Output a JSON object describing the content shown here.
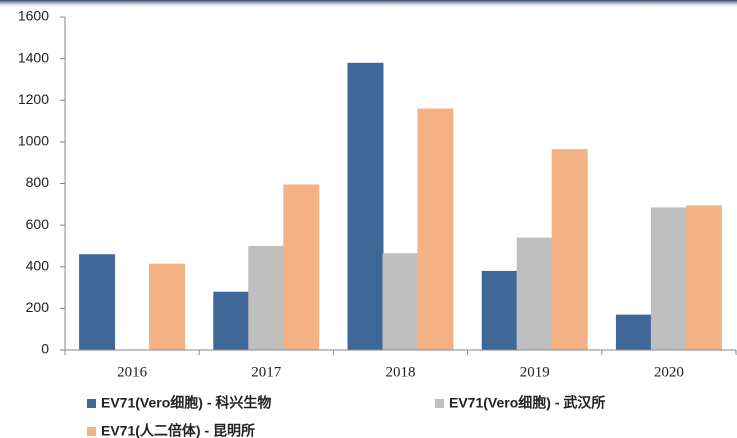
{
  "chart_data": {
    "type": "bar",
    "categories": [
      "2016",
      "2017",
      "2018",
      "2019",
      "2020"
    ],
    "series": [
      {
        "name": "EV71(Vero细胞) - 科兴生物",
        "color": "#3f6899",
        "values": [
          460,
          280,
          1380,
          380,
          170
        ]
      },
      {
        "name": "EV71(Vero细胞) - 武汉所",
        "color": "#bfbfbf",
        "values": [
          null,
          500,
          465,
          540,
          685
        ]
      },
      {
        "name": "EV71(人二倍体) - 昆明所",
        "color": "#f4b183",
        "values": [
          415,
          795,
          1160,
          965,
          695
        ]
      }
    ],
    "ylim": [
      0,
      1600
    ],
    "yticks": [
      0,
      200,
      400,
      600,
      800,
      1000,
      1200,
      1400,
      1600
    ],
    "grid": false
  }
}
